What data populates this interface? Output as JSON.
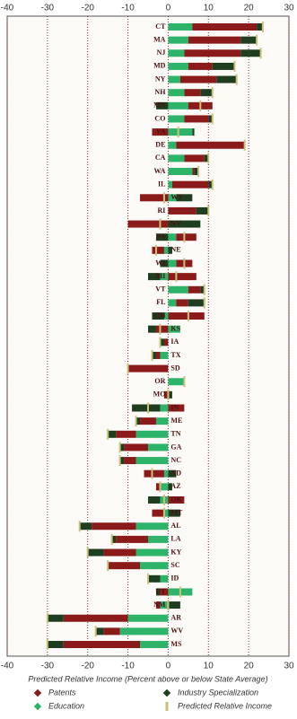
{
  "chart_data": {
    "type": "bar",
    "orientation": "horizontal",
    "x_label": "Predicted Relative Income (Percent above or below State Average)",
    "xlim": [
      -40,
      30
    ],
    "xticks": [
      -40,
      -30,
      -20,
      -10,
      0,
      10,
      20,
      30
    ],
    "grid": true,
    "legend": "bottom",
    "stack_order": [
      2,
      0,
      1
    ],
    "categories": [
      "CT",
      "MA",
      "NJ",
      "MD",
      "NY",
      "NH",
      "MN",
      "CO",
      "VA",
      "DE",
      "CA",
      "WA",
      "IL",
      "WY",
      "RI",
      "NV",
      "PA",
      "NE",
      "WI",
      "MI",
      "VT",
      "FL",
      "OH",
      "KS",
      "IA",
      "TX",
      "SD",
      "OR",
      "MO",
      "IN",
      "ME",
      "TN",
      "GA",
      "NC",
      "ND",
      "AZ",
      "OK",
      "MT",
      "AL",
      "LA",
      "KY",
      "SC",
      "ID",
      "UT",
      "NM",
      "AR",
      "WV",
      "MS"
    ],
    "series": [
      {
        "name": "Patents",
        "color": "#8b1a1a",
        "type": "bar",
        "values": [
          16,
          13,
          14,
          6,
          9,
          4,
          6,
          6,
          -4,
          17,
          5,
          0.5,
          9,
          -7,
          7,
          -10,
          5,
          -3,
          4,
          7,
          3,
          3,
          9,
          -3,
          -1,
          -1,
          -10,
          0,
          -1,
          4,
          -4,
          -5,
          -6,
          -3,
          -5,
          -1,
          4,
          -3,
          -11,
          -8,
          -8,
          -8,
          0,
          -2,
          -1,
          -16,
          -4,
          -19
        ]
      },
      {
        "name": "Industry Specialization",
        "color": "#1f3d1f",
        "type": "bar",
        "values": [
          1.5,
          4,
          5,
          5.5,
          5,
          3,
          -3,
          1,
          0.5,
          0,
          1,
          1,
          1,
          4,
          3,
          8,
          -3,
          1,
          -2,
          -3,
          1,
          4,
          -3,
          -2,
          -1,
          -1,
          0,
          0,
          1,
          -7,
          -1,
          -2,
          -1,
          -1,
          2,
          1,
          -3,
          3,
          -3,
          -1,
          -4,
          0,
          -3,
          -1,
          3,
          -4,
          -2,
          -4
        ]
      },
      {
        "name": "Education",
        "color": "#2eb36a",
        "type": "bar",
        "values": [
          6,
          5,
          4,
          5,
          3,
          4,
          5,
          4,
          6,
          2,
          4,
          6,
          1,
          2,
          0,
          0,
          2,
          -1,
          2,
          -2,
          5,
          2,
          -1,
          3,
          0,
          -2,
          0,
          4,
          0,
          -2,
          -3,
          -8,
          -5,
          -8,
          -1,
          -2,
          -2,
          -1,
          -8,
          -5,
          -8,
          -7,
          -2,
          6,
          -2,
          -10,
          -12,
          -7
        ]
      },
      {
        "name": "Predicted Relative Income",
        "color": "#c9c27a",
        "type": "marker",
        "values": [
          23.5,
          22,
          23,
          16.5,
          17,
          11,
          8,
          11,
          2.5,
          19,
          10,
          7.5,
          11,
          -1,
          10,
          -2,
          4,
          -3,
          4,
          2,
          9,
          9,
          5,
          -2,
          -2,
          -4,
          -10,
          4,
          0,
          -5,
          -8,
          -15,
          -12,
          -12,
          -4,
          -2,
          -1,
          -1,
          -22,
          -14,
          -20,
          -15,
          -5,
          3,
          0,
          -30,
          -18,
          -30
        ]
      }
    ]
  }
}
